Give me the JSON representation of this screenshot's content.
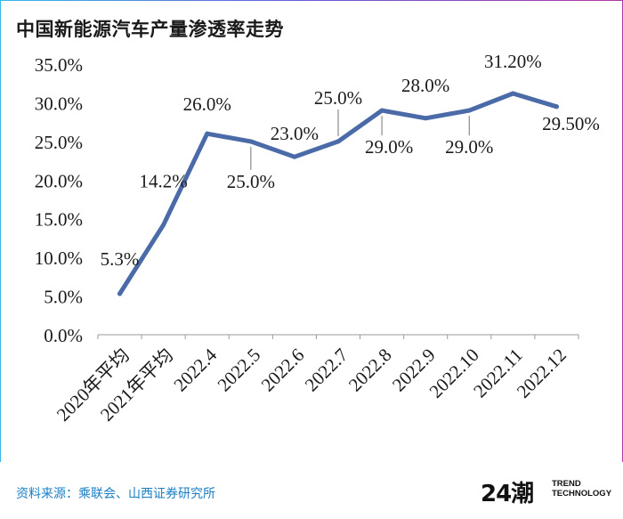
{
  "title": "中国新能源汽车产量渗透率走势",
  "source": "资料来源：乘联会、山西证券研究所",
  "logo": {
    "number": "24潮",
    "line1": "TREND",
    "line2": "TECHNOLOGY"
  },
  "colors": {
    "line": "#4a6aa8",
    "source_text": "#1b7fc4"
  },
  "chart_data": {
    "type": "line",
    "title": "中国新能源汽车产量渗透率走势",
    "categories": [
      "2020年平均",
      "2021年平均",
      "2022.4",
      "2022.5",
      "2022.6",
      "2022.7",
      "2022.8",
      "2022.9",
      "2022.10",
      "2022.11",
      "2022.12"
    ],
    "values": [
      5.3,
      14.2,
      26.0,
      25.0,
      23.0,
      25.0,
      29.0,
      28.0,
      29.0,
      31.2,
      29.5
    ],
    "data_labels": [
      "5.3%",
      "14.2%",
      "26.0%",
      "25.0%",
      "23.0%",
      "25.0%",
      "29.0%",
      "28.0%",
      "29.0%",
      "31.20%",
      "29.50%"
    ],
    "yticks": [
      "0.0%",
      "5.0%",
      "10.0%",
      "15.0%",
      "20.0%",
      "25.0%",
      "30.0%",
      "35.0%"
    ],
    "ylim": [
      0,
      35
    ],
    "grid": false
  }
}
